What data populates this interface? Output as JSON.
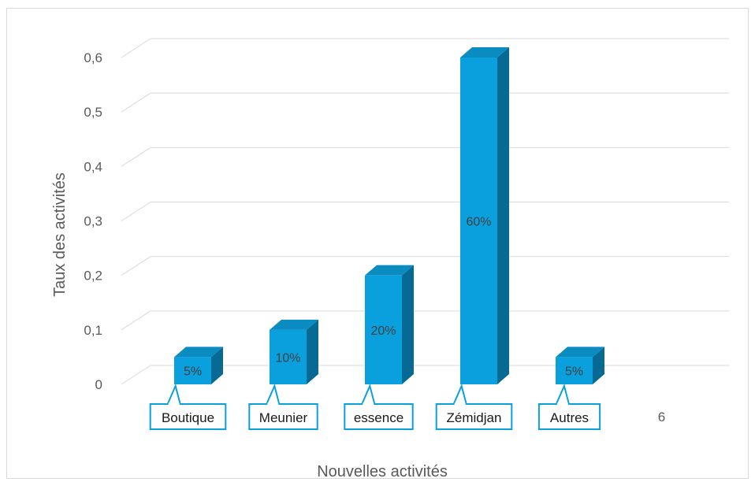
{
  "chart_data": {
    "type": "bar",
    "style": "3d-column",
    "categories": [
      "Boutique",
      "Meunier",
      "essence",
      "Zémidjan",
      "Autres",
      "6"
    ],
    "values": [
      0.05,
      0.1,
      0.2,
      0.6,
      0.05,
      null
    ],
    "data_labels": [
      "5%",
      "10%",
      "20%",
      "60%",
      "5%",
      ""
    ],
    "title": "",
    "xlabel": "Nouvelles activités",
    "ylabel": "Taux des activités",
    "ylim": [
      0,
      0.6
    ],
    "yticks": [
      "0",
      "0,1",
      "0,2",
      "0,3",
      "0,4",
      "0,5",
      "0,6"
    ],
    "grid": true,
    "legend": "none",
    "colors": {
      "bar_front": "#0aa0de",
      "bar_top": "#0b8cc1",
      "bar_side": "#076a94",
      "label_box_border": "#0aa0de",
      "gridline": "#d9d9d9"
    }
  }
}
